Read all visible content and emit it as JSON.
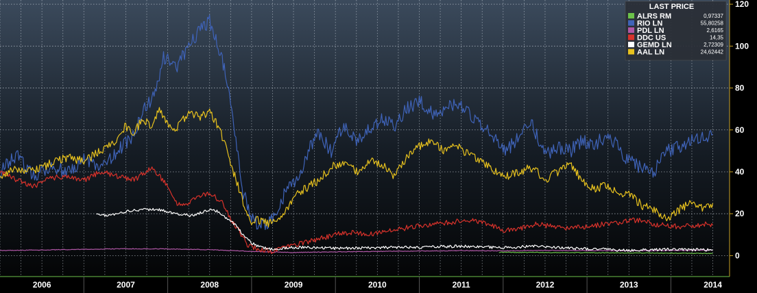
{
  "chart_data": {
    "type": "line",
    "title": "",
    "xlabel": "",
    "ylabel": "",
    "legend_title": "LAST PRICE",
    "legend_position": "top-right",
    "grid": true,
    "ylim": [
      -10,
      122
    ],
    "xlim": [
      2005.5,
      2014.2
    ],
    "y_ticks": [
      0,
      20,
      40,
      60,
      80,
      100,
      120
    ],
    "x_tick_labels": [
      {
        "label": "2006",
        "x": 2006.0
      },
      {
        "label": "2007",
        "x": 2007.0
      },
      {
        "label": "2008",
        "x": 2008.0
      },
      {
        "label": "2009",
        "x": 2009.0
      },
      {
        "label": "2010",
        "x": 2010.0
      },
      {
        "label": "2011",
        "x": 2011.0
      },
      {
        "label": "2012",
        "x": 2012.0
      },
      {
        "label": "2013",
        "x": 2013.0
      },
      {
        "label": "2014",
        "x": 2014.0
      }
    ],
    "series": [
      {
        "name": "ALRS RM",
        "last_price": "0,97337",
        "color": "#6cc24a",
        "x": [
          2011.45,
          2012.0,
          2012.5,
          2013.0,
          2013.5,
          2014.0
        ],
        "y": [
          1.6,
          1.5,
          1.4,
          1.3,
          1.2,
          1.0
        ]
      },
      {
        "name": "RIO LN",
        "last_price": "55,80258",
        "color": "#3f63b8",
        "x": [
          2005.5,
          2005.7,
          2005.9,
          2006.1,
          2006.3,
          2006.5,
          2006.7,
          2006.9,
          2007.05,
          2007.2,
          2007.35,
          2007.45,
          2007.6,
          2007.75,
          2007.9,
          2008.0,
          2008.1,
          2008.2,
          2008.3,
          2008.4,
          2008.5,
          2008.6,
          2008.7,
          2008.8,
          2008.9,
          2009.0,
          2009.1,
          2009.2,
          2009.3,
          2009.45,
          2009.6,
          2009.75,
          2009.9,
          2010.05,
          2010.2,
          2010.35,
          2010.5,
          2010.65,
          2010.8,
          2010.95,
          2011.1,
          2011.25,
          2011.4,
          2011.55,
          2011.7,
          2011.85,
          2012.0,
          2012.15,
          2012.3,
          2012.45,
          2012.6,
          2012.75,
          2012.9,
          2013.0,
          2013.15,
          2013.3,
          2013.45,
          2013.6,
          2013.75,
          2013.9,
          2014.0
        ],
        "y": [
          40,
          48,
          38,
          43,
          40,
          46,
          42,
          50,
          55,
          68,
          78,
          95,
          90,
          100,
          108,
          112,
          100,
          85,
          60,
          30,
          18,
          14,
          16,
          20,
          30,
          35,
          42,
          52,
          58,
          50,
          62,
          55,
          60,
          65,
          62,
          70,
          74,
          68,
          70,
          72,
          68,
          62,
          55,
          50,
          58,
          62,
          48,
          52,
          50,
          55,
          53,
          58,
          50,
          45,
          42,
          40,
          50,
          52,
          55,
          56,
          58
        ]
      },
      {
        "name": "PDL LN",
        "last_price": "2,6165",
        "color": "#b057a6",
        "x": [
          2005.5,
          2006.0,
          2006.5,
          2007.0,
          2007.5,
          2008.0,
          2008.5,
          2009.0,
          2009.5,
          2010.0,
          2010.5,
          2011.0,
          2011.5,
          2012.0,
          2012.5,
          2013.0,
          2013.5,
          2014.0
        ],
        "y": [
          2.5,
          2.7,
          3.0,
          3.3,
          3.2,
          2.8,
          2.0,
          1.5,
          1.8,
          2.0,
          2.2,
          2.4,
          2.3,
          2.5,
          2.4,
          2.3,
          2.5,
          2.6
        ]
      },
      {
        "name": "DDC US",
        "last_price": "14,35",
        "color": "#d9322b",
        "x": [
          2005.5,
          2005.7,
          2005.9,
          2006.1,
          2006.3,
          2006.5,
          2006.7,
          2006.9,
          2007.1,
          2007.3,
          2007.4,
          2007.5,
          2007.6,
          2007.7,
          2007.8,
          2008.0,
          2008.15,
          2008.25,
          2008.35,
          2008.45,
          2008.6,
          2008.75,
          2008.9,
          2009.1,
          2009.3,
          2009.5,
          2009.7,
          2009.9,
          2010.1,
          2010.3,
          2010.5,
          2010.7,
          2010.9,
          2011.1,
          2011.3,
          2011.5,
          2011.7,
          2011.9,
          2012.1,
          2012.3,
          2012.5,
          2012.7,
          2012.9,
          2013.1,
          2013.3,
          2013.5,
          2013.7,
          2013.9,
          2014.0
        ],
        "y": [
          40,
          36,
          33,
          37,
          38,
          36,
          40,
          38,
          36,
          42,
          38,
          33,
          25,
          24,
          27,
          30,
          25,
          18,
          12,
          5,
          3,
          2,
          4,
          6,
          8,
          10,
          11,
          10,
          12,
          13,
          14,
          15,
          16,
          17,
          15,
          12,
          13,
          15,
          14,
          13,
          14,
          15,
          16,
          17,
          15,
          14,
          14,
          15,
          14.5
        ]
      },
      {
        "name": "GEMD LN",
        "last_price": "2,72309",
        "color": "#ffffff",
        "x": [
          2006.65,
          2006.8,
          2007.0,
          2007.2,
          2007.4,
          2007.6,
          2007.8,
          2008.0,
          2008.1,
          2008.2,
          2008.3,
          2008.4,
          2008.5,
          2008.6,
          2008.75,
          2009.0,
          2009.5,
          2010.0,
          2010.5,
          2011.0,
          2011.5,
          2011.9,
          2012.3,
          2012.7,
          2013.0,
          2013.5,
          2014.0
        ],
        "y": [
          20,
          19,
          21,
          22,
          22,
          20,
          19,
          22,
          21,
          18,
          15,
          10,
          6,
          4,
          3,
          4,
          3.5,
          3.8,
          4,
          4.5,
          3.8,
          4.5,
          3.5,
          3,
          2.5,
          3,
          2.7
        ]
      },
      {
        "name": "AAL LN",
        "last_price": "24,62442",
        "color": "#e8c21e",
        "x": [
          2005.5,
          2005.7,
          2005.9,
          2006.1,
          2006.3,
          2006.5,
          2006.7,
          2006.9,
          2007.0,
          2007.1,
          2007.2,
          2007.3,
          2007.4,
          2007.5,
          2007.6,
          2007.7,
          2007.8,
          2007.9,
          2008.0,
          2008.1,
          2008.2,
          2008.3,
          2008.4,
          2008.5,
          2008.6,
          2008.7,
          2008.8,
          2008.9,
          2009.0,
          2009.15,
          2009.3,
          2009.45,
          2009.6,
          2009.75,
          2009.9,
          2010.05,
          2010.2,
          2010.35,
          2010.5,
          2010.65,
          2010.8,
          2010.95,
          2011.1,
          2011.25,
          2011.4,
          2011.55,
          2011.7,
          2011.85,
          2012.0,
          2012.15,
          2012.3,
          2012.45,
          2012.6,
          2012.75,
          2012.9,
          2013.0,
          2013.15,
          2013.3,
          2013.45,
          2013.6,
          2013.75,
          2013.9,
          2014.0
        ],
        "y": [
          38,
          42,
          40,
          44,
          47,
          45,
          50,
          55,
          62,
          58,
          66,
          62,
          70,
          62,
          60,
          66,
          68,
          66,
          69,
          62,
          52,
          38,
          25,
          16,
          17,
          15,
          18,
          20,
          28,
          32,
          36,
          42,
          45,
          40,
          45,
          44,
          38,
          47,
          52,
          55,
          50,
          52,
          48,
          45,
          40,
          38,
          40,
          42,
          36,
          40,
          44,
          35,
          32,
          34,
          28,
          30,
          24,
          22,
          18,
          22,
          25,
          22,
          25
        ]
      }
    ]
  }
}
